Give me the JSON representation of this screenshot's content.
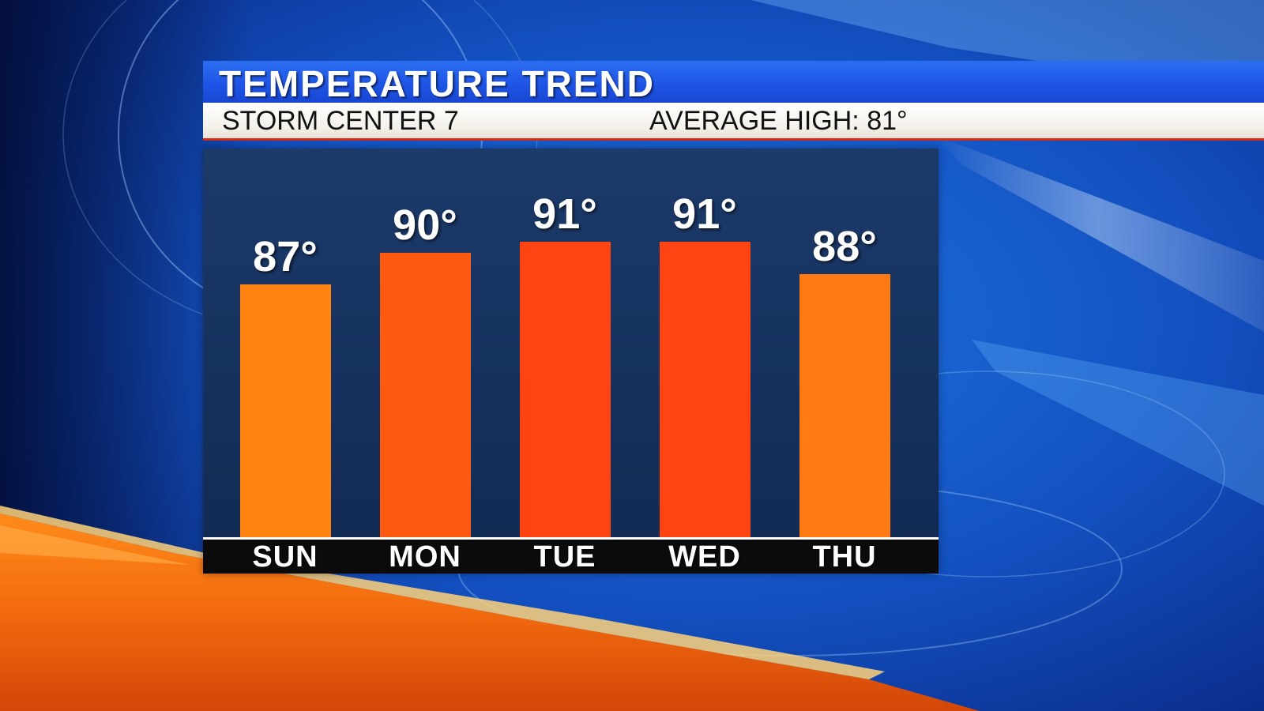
{
  "header": {
    "title": "TEMPERATURE TREND",
    "station": "STORM CENTER 7",
    "average_high": "AVERAGE HIGH: 81°"
  },
  "chart_data": {
    "type": "bar",
    "title": "TEMPERATURE TREND",
    "categories": [
      "SUN",
      "MON",
      "TUE",
      "WED",
      "THU"
    ],
    "values": [
      87,
      90,
      91,
      91,
      88
    ],
    "value_labels": [
      "87°",
      "90°",
      "91°",
      "91°",
      "88°"
    ],
    "bar_colors": [
      "#ff8412",
      "#ff5a12",
      "#ff4414",
      "#ff4414",
      "#ff7a12"
    ],
    "grid": false,
    "legend": "none"
  }
}
